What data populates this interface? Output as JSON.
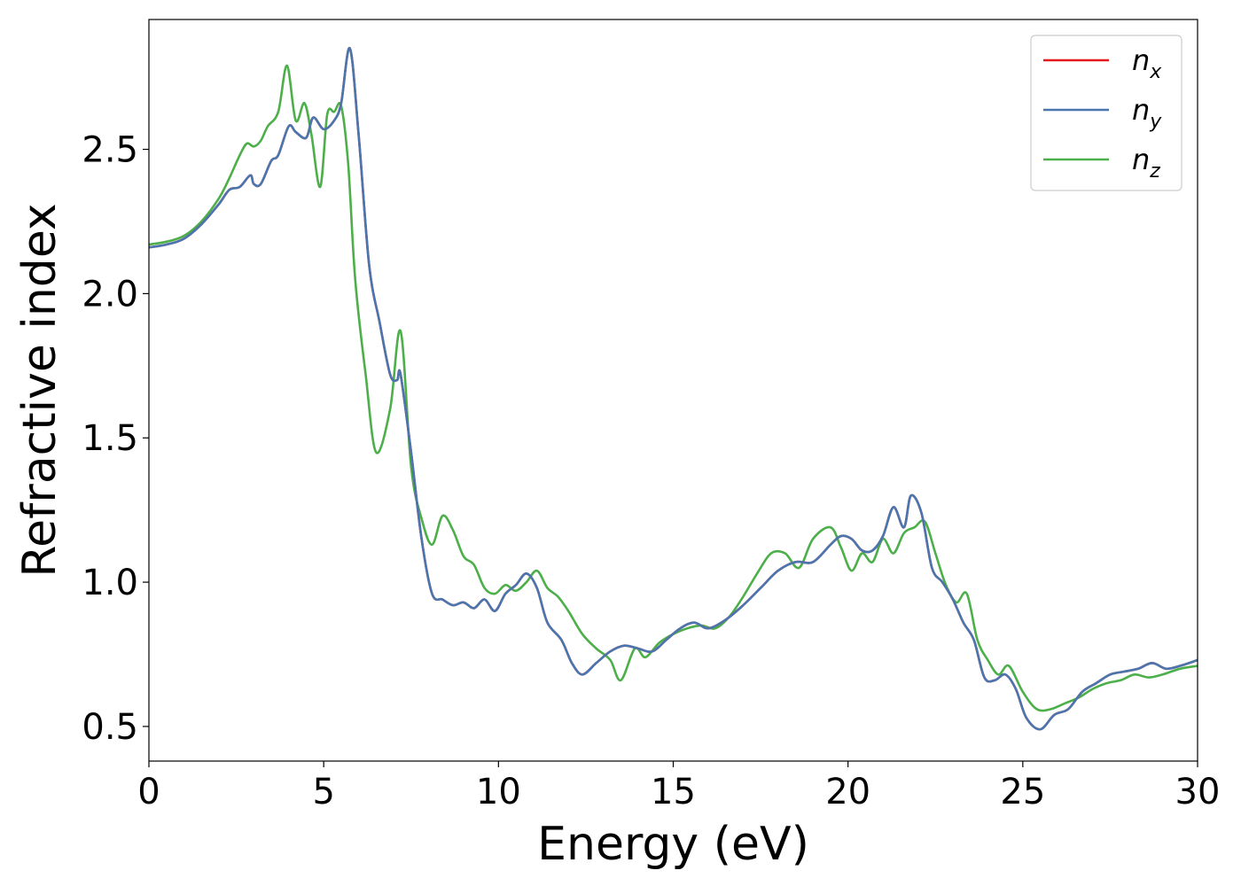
{
  "chart_data": {
    "type": "line",
    "title": "",
    "xlabel": "Energy (eV)",
    "ylabel": "Refractive index",
    "xlim": [
      0,
      30
    ],
    "ylim": [
      0.38,
      2.95
    ],
    "xticks": [
      0,
      5,
      10,
      15,
      20,
      25,
      30
    ],
    "xtick_labels": [
      "0",
      "5",
      "10",
      "15",
      "20",
      "25",
      "30"
    ],
    "yticks": [
      0.5,
      1.0,
      1.5,
      2.0,
      2.5
    ],
    "ytick_labels": [
      "0.5",
      "1.0",
      "1.5",
      "2.0",
      "2.5"
    ],
    "grid": false,
    "legend_position": "top-right",
    "series": [
      {
        "name": "n",
        "subscript": "x",
        "color": "#e41a1c",
        "x": [
          0,
          0.5,
          1.0,
          1.5,
          2.0,
          2.3,
          2.6,
          2.9,
          3.0,
          3.2,
          3.5,
          3.7,
          4.0,
          4.2,
          4.5,
          4.7,
          5.0,
          5.3,
          5.5,
          5.75,
          6.0,
          6.3,
          6.6,
          6.9,
          7.1,
          7.2,
          7.5,
          7.8,
          8.1,
          8.4,
          8.7,
          9.0,
          9.3,
          9.6,
          9.9,
          10.2,
          10.5,
          10.8,
          11.1,
          11.4,
          11.8,
          12.1,
          12.4,
          12.8,
          13.2,
          13.6,
          14.0,
          14.4,
          14.8,
          15.2,
          15.6,
          16.0,
          16.5,
          17.0,
          17.5,
          18.0,
          18.5,
          19.0,
          19.5,
          19.8,
          20.1,
          20.4,
          20.7,
          21.0,
          21.3,
          21.6,
          21.8,
          22.1,
          22.4,
          22.7,
          23.0,
          23.3,
          23.6,
          23.9,
          24.2,
          24.5,
          24.8,
          25.1,
          25.5,
          25.9,
          26.3,
          26.7,
          27.1,
          27.5,
          27.9,
          28.3,
          28.7,
          29.1,
          29.5,
          30.0
        ],
        "y": [
          2.16,
          2.17,
          2.19,
          2.24,
          2.31,
          2.36,
          2.37,
          2.41,
          2.38,
          2.38,
          2.46,
          2.48,
          2.58,
          2.56,
          2.54,
          2.61,
          2.57,
          2.6,
          2.66,
          2.85,
          2.55,
          2.1,
          1.9,
          1.72,
          1.7,
          1.72,
          1.45,
          1.15,
          0.96,
          0.94,
          0.92,
          0.93,
          0.91,
          0.94,
          0.9,
          0.96,
          0.99,
          1.03,
          0.98,
          0.86,
          0.8,
          0.72,
          0.68,
          0.72,
          0.76,
          0.78,
          0.77,
          0.76,
          0.8,
          0.84,
          0.86,
          0.84,
          0.87,
          0.92,
          0.98,
          1.04,
          1.07,
          1.07,
          1.13,
          1.16,
          1.15,
          1.11,
          1.11,
          1.16,
          1.26,
          1.19,
          1.3,
          1.24,
          1.05,
          1.0,
          0.94,
          0.86,
          0.8,
          0.67,
          0.66,
          0.68,
          0.63,
          0.53,
          0.49,
          0.54,
          0.56,
          0.62,
          0.65,
          0.68,
          0.69,
          0.7,
          0.72,
          0.7,
          0.71,
          0.73
        ]
      },
      {
        "name": "n",
        "subscript": "y",
        "color": "#4a76b0",
        "x": [
          0,
          0.5,
          1.0,
          1.5,
          2.0,
          2.3,
          2.6,
          2.9,
          3.0,
          3.2,
          3.5,
          3.7,
          4.0,
          4.2,
          4.5,
          4.7,
          5.0,
          5.3,
          5.5,
          5.75,
          6.0,
          6.3,
          6.6,
          6.9,
          7.1,
          7.2,
          7.5,
          7.8,
          8.1,
          8.4,
          8.7,
          9.0,
          9.3,
          9.6,
          9.9,
          10.2,
          10.5,
          10.8,
          11.1,
          11.4,
          11.8,
          12.1,
          12.4,
          12.8,
          13.2,
          13.6,
          14.0,
          14.4,
          14.8,
          15.2,
          15.6,
          16.0,
          16.5,
          17.0,
          17.5,
          18.0,
          18.5,
          19.0,
          19.5,
          19.8,
          20.1,
          20.4,
          20.7,
          21.0,
          21.3,
          21.6,
          21.8,
          22.1,
          22.4,
          22.7,
          23.0,
          23.3,
          23.6,
          23.9,
          24.2,
          24.5,
          24.8,
          25.1,
          25.5,
          25.9,
          26.3,
          26.7,
          27.1,
          27.5,
          27.9,
          28.3,
          28.7,
          29.1,
          29.5,
          30.0
        ],
        "y": [
          2.16,
          2.17,
          2.19,
          2.24,
          2.31,
          2.36,
          2.37,
          2.41,
          2.38,
          2.38,
          2.46,
          2.48,
          2.58,
          2.56,
          2.54,
          2.61,
          2.57,
          2.6,
          2.66,
          2.85,
          2.55,
          2.1,
          1.9,
          1.72,
          1.7,
          1.72,
          1.45,
          1.15,
          0.96,
          0.94,
          0.92,
          0.93,
          0.91,
          0.94,
          0.9,
          0.96,
          0.99,
          1.03,
          0.98,
          0.86,
          0.8,
          0.72,
          0.68,
          0.72,
          0.76,
          0.78,
          0.77,
          0.76,
          0.8,
          0.84,
          0.86,
          0.84,
          0.87,
          0.92,
          0.98,
          1.04,
          1.07,
          1.07,
          1.13,
          1.16,
          1.15,
          1.11,
          1.11,
          1.16,
          1.26,
          1.19,
          1.3,
          1.24,
          1.05,
          1.0,
          0.94,
          0.86,
          0.8,
          0.67,
          0.66,
          0.68,
          0.63,
          0.53,
          0.49,
          0.54,
          0.56,
          0.62,
          0.65,
          0.68,
          0.69,
          0.7,
          0.72,
          0.7,
          0.71,
          0.73
        ]
      },
      {
        "name": "n",
        "subscript": "z",
        "color": "#4daf4a",
        "x": [
          0,
          0.5,
          1.0,
          1.5,
          2.0,
          2.3,
          2.6,
          2.8,
          3.0,
          3.2,
          3.4,
          3.7,
          3.95,
          4.2,
          4.45,
          4.65,
          4.9,
          5.1,
          5.3,
          5.5,
          5.7,
          5.9,
          6.2,
          6.5,
          6.9,
          7.2,
          7.5,
          7.8,
          8.1,
          8.4,
          8.7,
          9.0,
          9.3,
          9.6,
          9.9,
          10.2,
          10.5,
          10.8,
          11.1,
          11.4,
          11.7,
          12.0,
          12.4,
          12.8,
          13.2,
          13.5,
          13.9,
          14.2,
          14.6,
          15.0,
          15.4,
          15.8,
          16.2,
          16.6,
          17.0,
          17.4,
          17.8,
          18.2,
          18.6,
          19.0,
          19.5,
          19.8,
          20.1,
          20.4,
          20.7,
          21.0,
          21.3,
          21.6,
          21.9,
          22.2,
          22.5,
          22.8,
          23.1,
          23.4,
          23.7,
          24.0,
          24.3,
          24.6,
          25.0,
          25.4,
          25.8,
          26.2,
          26.6,
          27.0,
          27.4,
          27.8,
          28.2,
          28.6,
          29.0,
          29.5,
          30.0
        ],
        "y": [
          2.17,
          2.18,
          2.2,
          2.25,
          2.33,
          2.4,
          2.48,
          2.52,
          2.51,
          2.53,
          2.58,
          2.63,
          2.79,
          2.6,
          2.66,
          2.55,
          2.37,
          2.62,
          2.63,
          2.65,
          2.45,
          2.05,
          1.72,
          1.45,
          1.6,
          1.87,
          1.4,
          1.22,
          1.13,
          1.23,
          1.18,
          1.09,
          1.06,
          0.98,
          0.96,
          0.99,
          0.97,
          1.0,
          1.04,
          0.98,
          0.95,
          0.9,
          0.82,
          0.77,
          0.73,
          0.66,
          0.77,
          0.74,
          0.79,
          0.82,
          0.84,
          0.85,
          0.84,
          0.88,
          0.95,
          1.03,
          1.1,
          1.1,
          1.05,
          1.15,
          1.19,
          1.12,
          1.04,
          1.1,
          1.07,
          1.15,
          1.1,
          1.17,
          1.19,
          1.21,
          1.1,
          0.99,
          0.93,
          0.96,
          0.8,
          0.73,
          0.68,
          0.71,
          0.62,
          0.56,
          0.56,
          0.58,
          0.6,
          0.63,
          0.65,
          0.66,
          0.68,
          0.67,
          0.68,
          0.7,
          0.71
        ]
      }
    ]
  }
}
